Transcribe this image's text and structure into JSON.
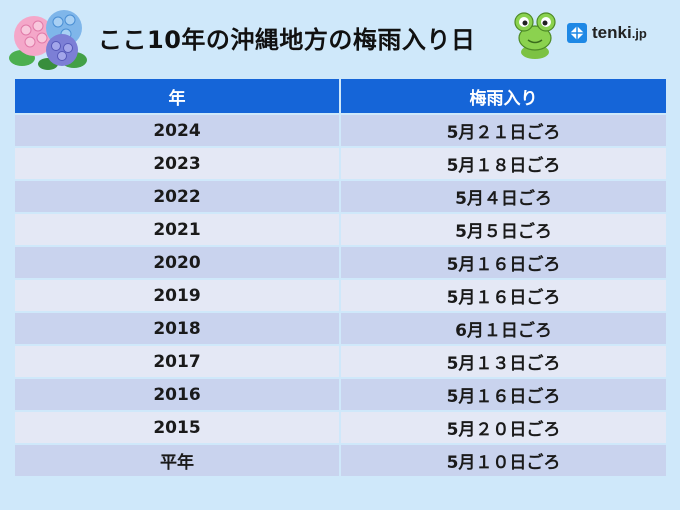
{
  "title": "ここ10年の沖縄地方の梅雨入り日",
  "brand": {
    "name": "tenki",
    "suffix": ".jp"
  },
  "icons": [
    "hydrangea-icon",
    "frog-icon",
    "tenki-logo-icon"
  ],
  "colors": {
    "background": "#cfe8fa",
    "header": "#1565d8",
    "row_dark": "#c9d3ee",
    "row_light": "#e4e8f5"
  },
  "table": {
    "columns": [
      "年",
      "梅雨入り"
    ],
    "rows": [
      [
        "2024",
        "5月２１日ごろ"
      ],
      [
        "2023",
        "5月１８日ごろ"
      ],
      [
        "2022",
        "5月４日ごろ"
      ],
      [
        "2021",
        "5月５日ごろ"
      ],
      [
        "2020",
        "5月１６日ごろ"
      ],
      [
        "2019",
        "5月１６日ごろ"
      ],
      [
        "2018",
        "6月１日ごろ"
      ],
      [
        "2017",
        "5月１３日ごろ"
      ],
      [
        "2016",
        "5月１６日ごろ"
      ],
      [
        "2015",
        "5月２０日ごろ"
      ],
      [
        "平年",
        "5月１０日ごろ"
      ]
    ]
  }
}
